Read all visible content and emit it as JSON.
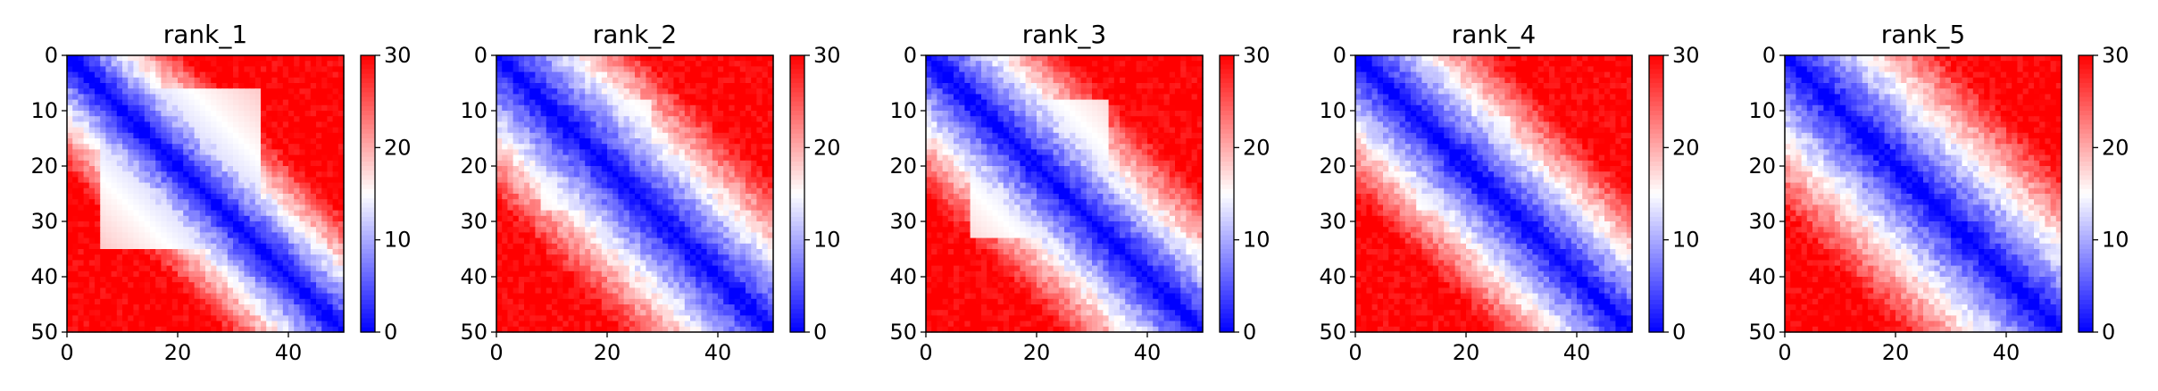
{
  "figure": {
    "colors": {
      "low": "#0000ff",
      "mid": "#ffffff",
      "high": "#ff0000",
      "axis": "#000000"
    }
  },
  "chart_data": [
    {
      "type": "heatmap",
      "title": "rank_1",
      "xlabel": "",
      "ylabel": "",
      "x_range": [
        0,
        50
      ],
      "y_range": [
        50,
        0
      ],
      "x_ticks": [
        "0",
        "20",
        "40"
      ],
      "y_ticks": [
        "0",
        "10",
        "20",
        "30",
        "40",
        "50"
      ],
      "matrix_size": 50,
      "colormap": "bwr",
      "color_range": [
        0,
        30
      ],
      "colorbar_ticks": [
        "0",
        "10",
        "20",
        "30"
      ],
      "pattern": {
        "core_band_width": 4.0,
        "core_max_distance": 11,
        "domains": [
          [
            6,
            34
          ]
        ]
      }
    },
    {
      "type": "heatmap",
      "title": "rank_2",
      "xlabel": "",
      "ylabel": "",
      "x_range": [
        0,
        50
      ],
      "y_range": [
        50,
        0
      ],
      "x_ticks": [
        "0",
        "20",
        "40"
      ],
      "y_ticks": [
        "0",
        "10",
        "20",
        "30",
        "40",
        "50"
      ],
      "matrix_size": 50,
      "colormap": "bwr",
      "color_range": [
        0,
        30
      ],
      "colorbar_ticks": [
        "0",
        "10",
        "20",
        "30"
      ],
      "pattern": {
        "core_band_width": 3.5,
        "core_max_distance": 14,
        "domains": [
          [
            8,
            27
          ]
        ]
      }
    },
    {
      "type": "heatmap",
      "title": "rank_3",
      "xlabel": "",
      "ylabel": "",
      "x_range": [
        0,
        50
      ],
      "y_range": [
        50,
        0
      ],
      "x_ticks": [
        "0",
        "20",
        "40"
      ],
      "y_ticks": [
        "0",
        "10",
        "20",
        "30",
        "40",
        "50"
      ],
      "matrix_size": 50,
      "colormap": "bwr",
      "color_range": [
        0,
        30
      ],
      "colorbar_ticks": [
        "0",
        "10",
        "20",
        "30"
      ],
      "pattern": {
        "core_band_width": 3.0,
        "core_max_distance": 13,
        "domains": [
          [
            8,
            32
          ]
        ]
      }
    },
    {
      "type": "heatmap",
      "title": "rank_4",
      "xlabel": "",
      "ylabel": "",
      "x_range": [
        0,
        50
      ],
      "y_range": [
        50,
        0
      ],
      "x_ticks": [
        "0",
        "20",
        "40"
      ],
      "y_ticks": [
        "0",
        "10",
        "20",
        "30",
        "40",
        "50"
      ],
      "matrix_size": 50,
      "colormap": "bwr",
      "color_range": [
        0,
        30
      ],
      "colorbar_ticks": [
        "0",
        "10",
        "20",
        "30"
      ],
      "pattern": {
        "core_band_width": 3.0,
        "core_max_distance": 13,
        "domains": [
          [
            11,
            27
          ]
        ]
      }
    },
    {
      "type": "heatmap",
      "title": "rank_5",
      "xlabel": "",
      "ylabel": "",
      "x_range": [
        0,
        50
      ],
      "y_range": [
        50,
        0
      ],
      "x_ticks": [
        "0",
        "20",
        "40"
      ],
      "y_ticks": [
        "0",
        "10",
        "20",
        "30",
        "40",
        "50"
      ],
      "matrix_size": 50,
      "colormap": "bwr",
      "color_range": [
        0,
        30
      ],
      "colorbar_ticks": [
        "0",
        "10",
        "20",
        "30"
      ],
      "pattern": {
        "core_band_width": 2.5,
        "core_max_distance": 15,
        "domains": []
      }
    }
  ]
}
